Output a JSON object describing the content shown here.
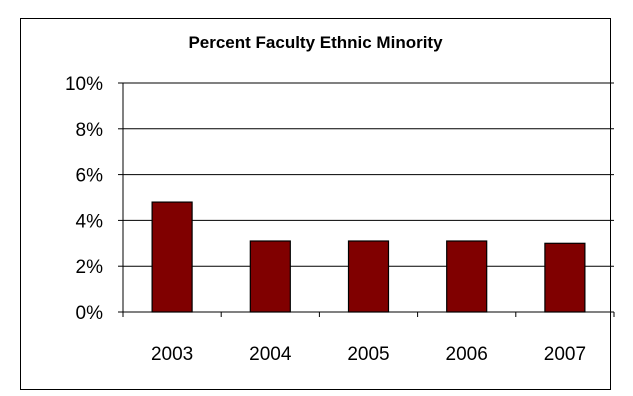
{
  "chart_data": {
    "type": "bar",
    "title": "Percent Faculty Ethnic Minority",
    "categories": [
      "2003",
      "2004",
      "2005",
      "2006",
      "2007"
    ],
    "values": [
      4.8,
      3.1,
      3.1,
      3.1,
      3.0
    ],
    "ylim": [
      0,
      10
    ],
    "yticks": [
      0,
      2,
      4,
      6,
      8,
      10
    ],
    "ytick_labels": [
      "0%",
      "2%",
      "4%",
      "6%",
      "8%",
      "10%"
    ],
    "xlabel": "",
    "ylabel": "",
    "grid": true,
    "legend": "none",
    "bar_color": "#800000",
    "bar_edge_color": "#000000"
  }
}
